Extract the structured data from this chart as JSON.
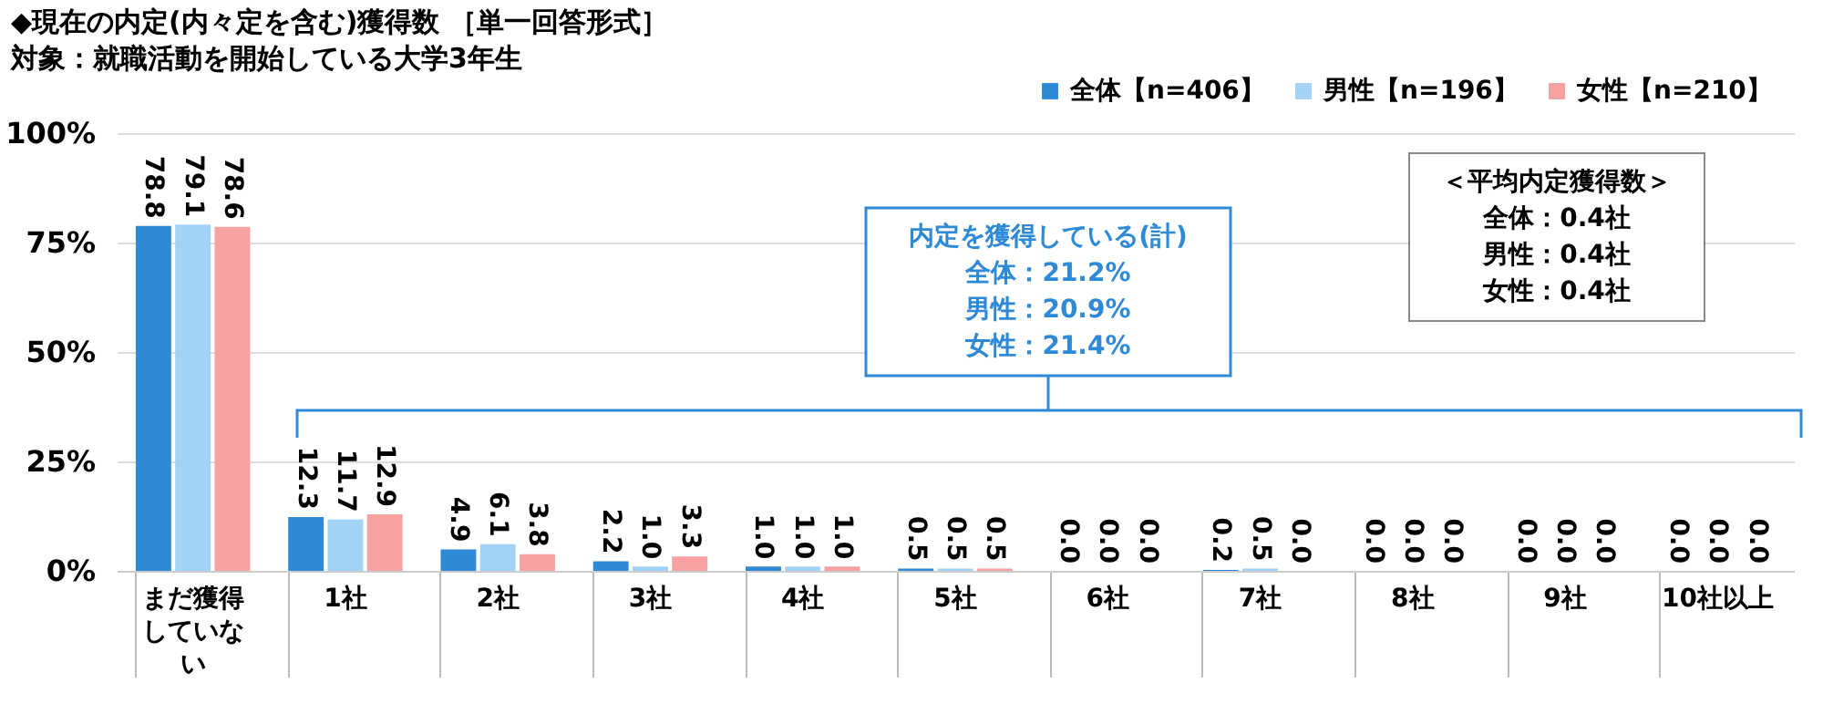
{
  "chart_data": {
    "type": "bar",
    "title": "◆現在の内定(内々定を含む)獲得数 ［単一回答形式］",
    "subtitle": "対象：就職活動を開始している大学3年生",
    "categories": [
      "まだ獲得していない",
      "1社",
      "2社",
      "3社",
      "4社",
      "5社",
      "6社",
      "7社",
      "8社",
      "9社",
      "10社以上"
    ],
    "series": [
      {
        "name": "全体【n=406】",
        "color": "#2e8ad6",
        "values": [
          78.8,
          12.3,
          4.9,
          2.2,
          1.0,
          0.5,
          0.0,
          0.2,
          0.0,
          0.0,
          0.0
        ]
      },
      {
        "name": "男性【n=196】",
        "color": "#a3d2f7",
        "values": [
          79.1,
          11.7,
          6.1,
          1.0,
          1.0,
          0.5,
          0.0,
          0.5,
          0.0,
          0.0,
          0.0
        ]
      },
      {
        "name": "女性【n=210】",
        "color": "#f7a1a1",
        "values": [
          78.6,
          12.9,
          3.8,
          3.3,
          1.0,
          0.5,
          0.0,
          0.0,
          0.0,
          0.0,
          0.0
        ]
      }
    ],
    "ylim": [
      0,
      100
    ],
    "yticks": [
      {
        "value": 0,
        "label": "0%"
      },
      {
        "value": 25,
        "label": "25%"
      },
      {
        "value": 50,
        "label": "50%"
      },
      {
        "value": 75,
        "label": "75%"
      },
      {
        "value": 100,
        "label": "100%"
      }
    ],
    "grid": "y",
    "legend": "top right",
    "value_labels": [
      [
        "78.8",
        "12.3",
        "4.9",
        "2.2",
        "1.0",
        "0.5",
        "0.0",
        "0.2",
        "0.0",
        "0.0",
        "0.0"
      ],
      [
        "79.1",
        "11.7",
        "6.1",
        "1.0",
        "1.0",
        "0.5",
        "0.0",
        "0.5",
        "0.0",
        "0.0",
        "0.0"
      ],
      [
        "78.6",
        "12.9",
        "3.8",
        "3.3",
        "1.0",
        "0.5",
        "0.0",
        "0.0",
        "0.0",
        "0.0",
        "0.0"
      ]
    ],
    "annotations": [
      "内定を獲得している(計)",
      "全体：21.2%",
      "男性：20.9%",
      "女性：21.4%",
      "＜平均内定獲得数＞",
      "全体：0.4社",
      "男性：0.4社",
      "女性：0.4社"
    ]
  }
}
